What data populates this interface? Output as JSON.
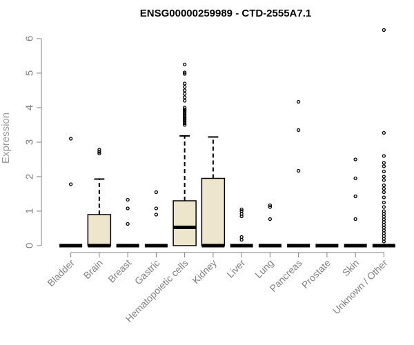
{
  "chart_data": {
    "type": "box",
    "title": "ENSG00000259989 - CTD-2555A7.1",
    "xlabel": "",
    "ylabel": "Expression",
    "ylim": [
      0,
      6.3
    ],
    "yticks": [
      0,
      1,
      2,
      3,
      4,
      5,
      6
    ],
    "categories": [
      "Bladder",
      "Brain",
      "Breast",
      "Gastric",
      "Hematopoietic cells",
      "Kidney",
      "Liver",
      "Lung",
      "Pancreas",
      "Prostate",
      "Skin",
      "Unknown / Other"
    ],
    "boxes": [
      {
        "q1": 0,
        "median": 0,
        "q3": 0,
        "whisker_low": 0,
        "whisker_high": 0,
        "outliers": [
          1.78,
          3.1
        ]
      },
      {
        "q1": 0,
        "median": 0,
        "q3": 0.9,
        "whisker_low": 0,
        "whisker_high": 1.93,
        "outliers": [
          2.67,
          2.72,
          2.78
        ]
      },
      {
        "q1": 0,
        "median": 0,
        "q3": 0,
        "whisker_low": 0,
        "whisker_high": 0,
        "outliers": [
          0.63,
          1.08,
          1.33
        ]
      },
      {
        "q1": 0,
        "median": 0,
        "q3": 0,
        "whisker_low": 0,
        "whisker_high": 0,
        "outliers": [
          0.9,
          1.08,
          1.55
        ]
      },
      {
        "q1": 0,
        "median": 0.53,
        "q3": 1.3,
        "whisker_low": 0,
        "whisker_high": 3.18,
        "outliers": [
          3.5,
          3.55,
          3.6,
          3.65,
          3.7,
          3.75,
          3.8,
          3.85,
          3.9,
          3.95,
          4.0,
          4.2,
          4.3,
          4.4,
          4.5,
          4.6,
          4.7,
          4.98,
          5.02,
          5.25
        ]
      },
      {
        "q1": 0,
        "median": 0,
        "q3": 1.95,
        "whisker_low": 0,
        "whisker_high": 3.15,
        "outliers": []
      },
      {
        "q1": 0,
        "median": 0,
        "q3": 0,
        "whisker_low": 0,
        "whisker_high": 0,
        "outliers": [
          0.17,
          0.25,
          0.85,
          0.92,
          1.0,
          1.05
        ]
      },
      {
        "q1": 0,
        "median": 0,
        "q3": 0,
        "whisker_low": 0,
        "whisker_high": 0,
        "outliers": [
          0.77,
          1.12,
          1.17
        ]
      },
      {
        "q1": 0,
        "median": 0,
        "q3": 0,
        "whisker_low": 0,
        "whisker_high": 0,
        "outliers": [
          2.17,
          3.35,
          4.17
        ]
      },
      {
        "q1": 0,
        "median": 0,
        "q3": 0,
        "whisker_low": 0,
        "whisker_high": 0,
        "outliers": []
      },
      {
        "q1": 0,
        "median": 0,
        "q3": 0,
        "whisker_low": 0,
        "whisker_high": 0,
        "outliers": [
          0.77,
          1.43,
          1.95,
          2.5
        ]
      },
      {
        "q1": 0,
        "median": 0,
        "q3": 0,
        "whisker_low": 0,
        "whisker_high": 0,
        "outliers": [
          0.12,
          0.2,
          0.28,
          0.36,
          0.44,
          0.52,
          0.6,
          0.68,
          0.76,
          0.84,
          0.92,
          1.0,
          1.12,
          1.25,
          1.4,
          1.55,
          1.65,
          1.75,
          1.9,
          2.0,
          2.15,
          2.3,
          2.4,
          2.6,
          3.27,
          6.25
        ]
      }
    ],
    "box_fill": "#ede6cc",
    "outline_color": "#000000",
    "axis_color": "#808080"
  }
}
